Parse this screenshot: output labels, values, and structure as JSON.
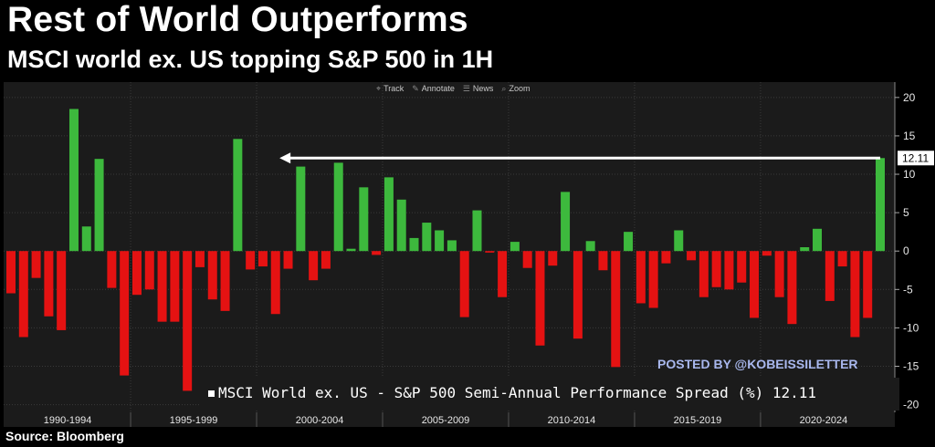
{
  "title": "Rest of World Outperforms",
  "subtitle": "MSCI world ex. US topping S&P 500 in 1H",
  "source": "Source: Bloomberg",
  "watermark": "POSTED BY @KOBEISSILETTER",
  "toolbar": [
    {
      "label": "Track",
      "icon": "crosshair-icon"
    },
    {
      "label": "Annotate",
      "icon": "pencil-icon"
    },
    {
      "label": "News",
      "icon": "news-icon"
    },
    {
      "label": "Zoom",
      "icon": "magnifier-icon"
    }
  ],
  "legend": {
    "label": "MSCI World ex. US - S&P 500 Semi-Annual Performance Spread (%)",
    "value": "12.11"
  },
  "colors": {
    "positive": "#3db93d",
    "negative": "#e51212",
    "background": "#1b1b1b",
    "arrow": "#ffffff",
    "last_value_box": "#ffffff"
  },
  "chart_data": {
    "type": "bar",
    "title": "Rest of World Outperforms",
    "subtitle": "MSCI world ex. US topping S&P 500 in 1H",
    "series": [
      {
        "name": "MSCI World ex. US - S&P 500 Semi-Annual Performance Spread (%)",
        "last_value": 12.11
      }
    ],
    "x_period_labels": [
      "1990-1994",
      "1995-1999",
      "2000-2004",
      "2005-2009",
      "2010-2014",
      "2015-2019",
      "2020-2024"
    ],
    "period_ranges": [
      [
        1990,
        1994
      ],
      [
        1995,
        1999
      ],
      [
        2000,
        2004
      ],
      [
        2005,
        2009
      ],
      [
        2010,
        2014
      ],
      [
        2015,
        2019
      ],
      [
        2020,
        2024
      ]
    ],
    "values": [
      -5.5,
      -11.2,
      -3.5,
      -8.5,
      -10.3,
      18.5,
      3.2,
      12.0,
      -4.8,
      -16.2,
      -5.7,
      -5.0,
      -9.2,
      -9.2,
      -18.2,
      -2.1,
      -6.3,
      -7.8,
      14.6,
      -2.4,
      -2.0,
      -8.2,
      -2.3,
      11.0,
      -3.8,
      -2.3,
      11.5,
      0.3,
      8.3,
      -0.5,
      9.6,
      6.7,
      1.7,
      3.7,
      2.7,
      1.4,
      -8.6,
      5.3,
      -0.2,
      -6.0,
      1.2,
      -2.2,
      -12.3,
      -1.9,
      7.7,
      -11.4,
      1.3,
      -2.5,
      -15.1,
      2.5,
      -6.8,
      -7.4,
      -1.6,
      2.7,
      -1.2,
      -6.0,
      -4.7,
      -5.0,
      -4.1,
      -8.7,
      -0.6,
      -6.0,
      -9.5,
      0.5,
      2.9,
      -6.5,
      -2.0,
      -11.2,
      -8.7,
      12.11
    ],
    "ylim": [
      -21,
      22
    ],
    "yticks": [
      -20,
      -15,
      -10,
      -5,
      0,
      5,
      10,
      15,
      20
    ],
    "annotation": {
      "type": "arrow",
      "from_value": 12.11,
      "to_x_index": 19,
      "direction": "left"
    },
    "last_value_label": "12.11",
    "grid": true
  }
}
